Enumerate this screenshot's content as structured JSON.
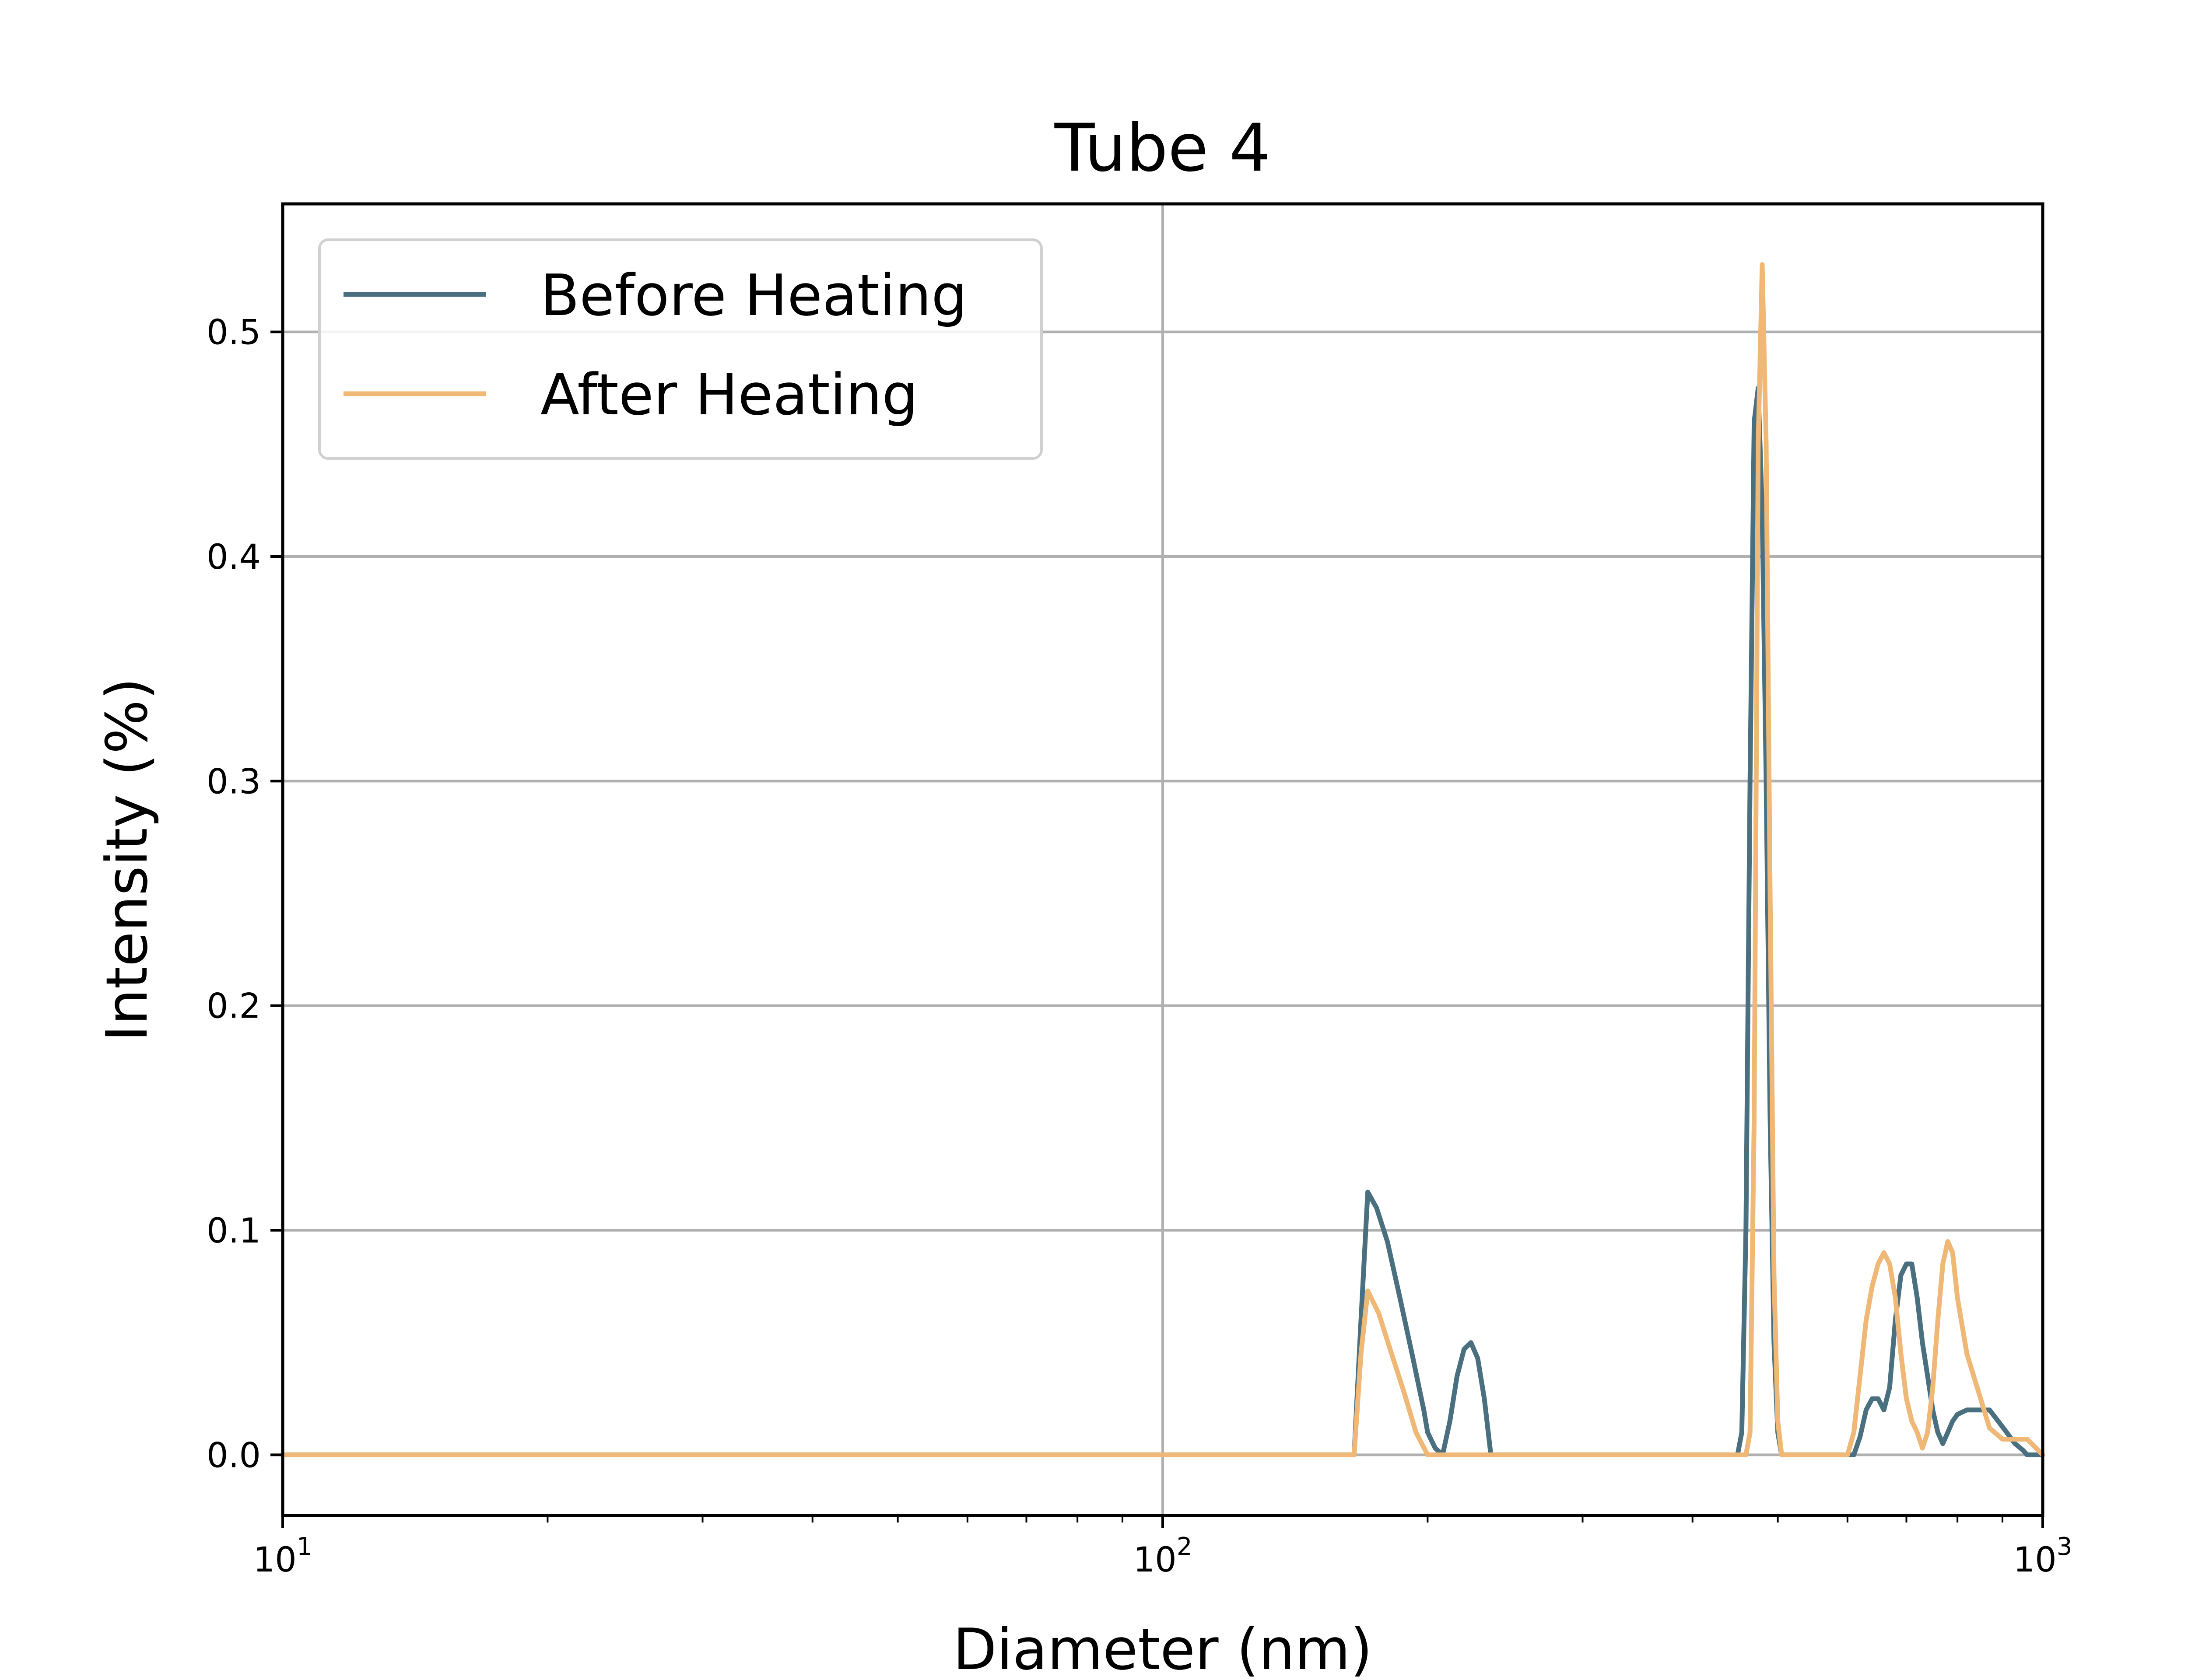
{
  "chart_data": {
    "type": "line",
    "title": "Tube 4",
    "xlabel": "Diameter (nm)",
    "ylabel": "Intensity (%)",
    "x_scale": "log",
    "xlim": [
      10,
      1000
    ],
    "ylim": [
      -0.027,
      0.557
    ],
    "grid": true,
    "legend_position": "top-left",
    "x_ticks": [
      {
        "value": 10,
        "base": "10",
        "exp": "1"
      },
      {
        "value": 100,
        "base": "10",
        "exp": "2"
      },
      {
        "value": 1000,
        "base": "10",
        "exp": "3"
      }
    ],
    "y_ticks": [
      {
        "value": 0.0,
        "label": "0.0"
      },
      {
        "value": 0.1,
        "label": "0.1"
      },
      {
        "value": 0.2,
        "label": "0.2"
      },
      {
        "value": 0.3,
        "label": "0.3"
      },
      {
        "value": 0.4,
        "label": "0.4"
      },
      {
        "value": 0.5,
        "label": "0.5"
      }
    ],
    "series": [
      {
        "name": "Before Heating",
        "color": "#4a7080",
        "x": [
          10,
          165,
          168,
          171,
          175,
          180,
          186,
          192,
          198,
          200,
          204,
          208,
          212,
          216,
          220,
          224,
          228,
          232,
          236,
          250,
          400,
          450,
          455,
          460,
          465,
          470,
          475,
          480,
          485,
          490,
          495,
          500,
          505,
          510,
          520,
          530,
          540,
          600,
          610,
          620,
          630,
          640,
          650,
          660,
          670,
          680,
          690,
          700,
          710,
          720,
          730,
          740,
          750,
          760,
          770,
          780,
          790,
          800,
          820,
          850,
          870,
          890,
          910,
          930,
          950,
          960,
          1000
        ],
        "y": [
          0,
          0,
          0.06,
          0.117,
          0.11,
          0.095,
          0.07,
          0.045,
          0.02,
          0.01,
          0.003,
          0.0,
          0.015,
          0.035,
          0.047,
          0.05,
          0.043,
          0.025,
          0.0,
          0.0,
          0.0,
          0.0,
          0.01,
          0.1,
          0.3,
          0.46,
          0.475,
          0.42,
          0.3,
          0.15,
          0.05,
          0.01,
          0.0,
          0.0,
          0.0,
          0.0,
          0.0,
          0.0,
          0.0,
          0.008,
          0.02,
          0.025,
          0.025,
          0.02,
          0.03,
          0.06,
          0.08,
          0.085,
          0.085,
          0.07,
          0.05,
          0.035,
          0.02,
          0.01,
          0.005,
          0.01,
          0.015,
          0.018,
          0.02,
          0.02,
          0.02,
          0.015,
          0.01,
          0.005,
          0.002,
          0.0,
          0.0
        ]
      },
      {
        "name": "After Heating",
        "color": "#f0b877",
        "x": [
          10,
          165,
          168,
          171,
          176,
          182,
          188,
          194,
          200,
          210,
          250,
          400,
          460,
          465,
          470,
          475,
          480,
          485,
          490,
          495,
          500,
          505,
          510,
          520,
          530,
          600,
          610,
          620,
          630,
          640,
          650,
          660,
          670,
          680,
          690,
          700,
          710,
          720,
          730,
          740,
          750,
          760,
          770,
          780,
          790,
          800,
          820,
          850,
          870,
          900,
          920,
          940,
          960,
          1000
        ],
        "y": [
          0,
          0,
          0.045,
          0.073,
          0.063,
          0.045,
          0.028,
          0.01,
          0.0,
          0.0,
          0.0,
          0.0,
          0.0,
          0.01,
          0.15,
          0.45,
          0.53,
          0.45,
          0.25,
          0.08,
          0.015,
          0.0,
          0.0,
          0.0,
          0.0,
          0.0,
          0.01,
          0.035,
          0.06,
          0.075,
          0.085,
          0.09,
          0.085,
          0.07,
          0.045,
          0.025,
          0.015,
          0.01,
          0.003,
          0.01,
          0.03,
          0.06,
          0.085,
          0.095,
          0.09,
          0.07,
          0.045,
          0.025,
          0.012,
          0.007,
          0.007,
          0.007,
          0.007,
          0.0
        ]
      }
    ]
  }
}
